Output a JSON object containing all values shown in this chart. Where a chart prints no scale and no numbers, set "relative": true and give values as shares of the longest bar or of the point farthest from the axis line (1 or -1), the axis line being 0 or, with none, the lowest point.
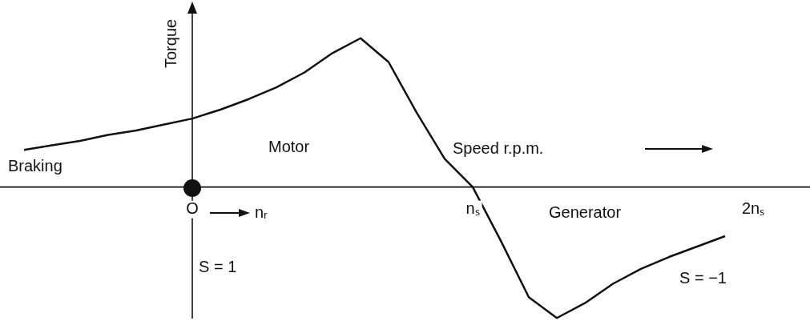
{
  "chart_data": {
    "type": "line",
    "xlabel": "Speed r.p.m.",
    "ylabel": "Torque",
    "annotations": [
      "Braking",
      "Motor",
      "Generator",
      "nᵣ",
      "S = 1",
      "S = −1"
    ],
    "categories": [
      null,
      null,
      null,
      null,
      null,
      null,
      "O",
      null,
      null,
      null,
      null,
      null,
      null,
      null,
      null,
      null,
      "nₛ",
      null,
      null,
      null,
      null,
      null,
      null,
      null,
      null,
      null,
      "2nₛ",
      null
    ],
    "series": [
      {
        "color": "#111111",
        "values": [
          0.25,
          0.28,
          0.31,
          0.35,
          0.38,
          0.42,
          0.46,
          0.52,
          0.59,
          0.67,
          0.77,
          0.9,
          1.0,
          0.84,
          0.5,
          0.19,
          0,
          -0.36,
          -0.74,
          -0.88,
          -0.78,
          -0.65,
          -0.55,
          -0.47,
          -0.4,
          -0.33,
          null,
          null
        ]
      }
    ],
    "relative": true,
    "marker": "none",
    "line_style": "solid"
  }
}
